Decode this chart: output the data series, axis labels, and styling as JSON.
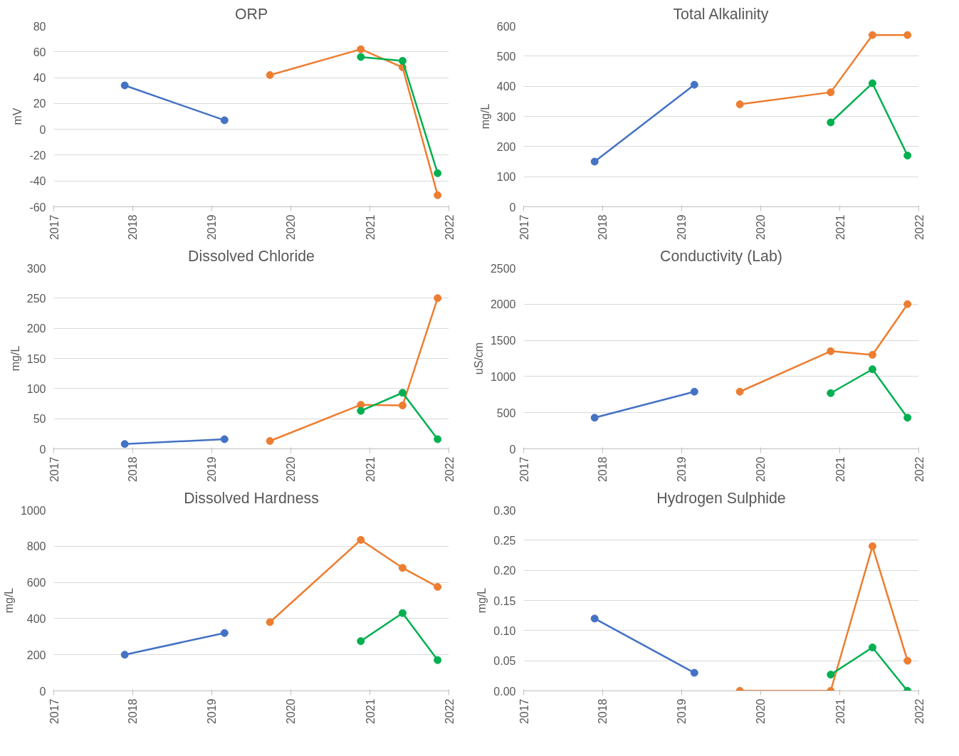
{
  "chart_data": [
    {
      "type": "line",
      "title": "ORP",
      "ylabel": "mV",
      "ylim": [
        -60,
        80
      ],
      "yticks": [
        -60,
        -40,
        -20,
        0,
        20,
        40,
        60,
        80
      ],
      "xlim": [
        "2017",
        "2022"
      ],
      "xticks": [
        "2017",
        "2018",
        "2019",
        "2020",
        "2021",
        "2022"
      ],
      "grid": "y",
      "marker": "circle",
      "series": [
        {
          "color": "#4472c4",
          "x": [
            "2017-11-25",
            "2019-03-01"
          ],
          "values": [
            34,
            7
          ]
        },
        {
          "color": "#ed7d31",
          "x": [
            "2019-09-27",
            "2020-11-20",
            "2021-06-01",
            "2021-11-10"
          ],
          "values": [
            42,
            62,
            48,
            -51
          ]
        },
        {
          "color": "#00b050",
          "x": [
            "2020-11-20",
            "2021-06-01",
            "2021-11-10"
          ],
          "values": [
            56,
            53,
            -34
          ]
        }
      ]
    },
    {
      "type": "line",
      "title": "Total Alkalinity",
      "ylabel": "mg/L",
      "ylim": [
        0,
        600
      ],
      "yticks": [
        0,
        100,
        200,
        300,
        400,
        500,
        600
      ],
      "xlim": [
        "2017",
        "2022"
      ],
      "xticks": [
        "2017",
        "2018",
        "2019",
        "2020",
        "2021",
        "2022"
      ],
      "grid": "y",
      "marker": "circle",
      "series": [
        {
          "color": "#4472c4",
          "x": [
            "2017-11-25",
            "2019-03-01"
          ],
          "values": [
            150,
            405
          ]
        },
        {
          "color": "#ed7d31",
          "x": [
            "2019-09-27",
            "2020-11-20",
            "2021-06-01",
            "2021-11-10"
          ],
          "values": [
            340,
            380,
            570,
            570
          ]
        },
        {
          "color": "#00b050",
          "x": [
            "2020-11-20",
            "2021-06-01",
            "2021-11-10"
          ],
          "values": [
            280,
            410,
            170
          ]
        }
      ]
    },
    {
      "type": "line",
      "title": "Dissolved Chloride",
      "ylabel": "mg/L",
      "ylim": [
        0,
        300
      ],
      "yticks": [
        0,
        50,
        100,
        150,
        200,
        250,
        300
      ],
      "xlim": [
        "2017",
        "2022"
      ],
      "xticks": [
        "2017",
        "2018",
        "2019",
        "2020",
        "2021",
        "2022"
      ],
      "grid": "y",
      "marker": "circle",
      "series": [
        {
          "color": "#4472c4",
          "x": [
            "2017-11-25",
            "2019-03-01"
          ],
          "values": [
            8,
            16
          ]
        },
        {
          "color": "#ed7d31",
          "x": [
            "2019-09-27",
            "2020-11-20",
            "2021-06-01",
            "2021-11-10"
          ],
          "values": [
            13,
            73,
            72,
            250
          ]
        },
        {
          "color": "#00b050",
          "x": [
            "2020-11-20",
            "2021-06-01",
            "2021-11-10"
          ],
          "values": [
            63,
            93,
            16
          ]
        }
      ]
    },
    {
      "type": "line",
      "title": "Conductivity (Lab)",
      "ylabel": "uS/cm",
      "ylim": [
        0,
        2500
      ],
      "yticks": [
        0,
        500,
        1000,
        1500,
        2000,
        2500
      ],
      "xlim": [
        "2017",
        "2022"
      ],
      "xticks": [
        "2017",
        "2018",
        "2019",
        "2020",
        "2021",
        "2022"
      ],
      "grid": "y",
      "marker": "circle",
      "series": [
        {
          "color": "#4472c4",
          "x": [
            "2017-11-25",
            "2019-03-01"
          ],
          "values": [
            430,
            790
          ]
        },
        {
          "color": "#ed7d31",
          "x": [
            "2019-09-27",
            "2020-11-20",
            "2021-06-01",
            "2021-11-10"
          ],
          "values": [
            790,
            1350,
            1300,
            2000
          ]
        },
        {
          "color": "#00b050",
          "x": [
            "2020-11-20",
            "2021-06-01",
            "2021-11-10"
          ],
          "values": [
            770,
            1100,
            430
          ]
        }
      ]
    },
    {
      "type": "line",
      "title": "Dissolved Hardness",
      "ylabel": "mg/L",
      "ylim": [
        0,
        1000
      ],
      "yticks": [
        0,
        200,
        400,
        600,
        800,
        1000
      ],
      "xlim": [
        "2017",
        "2022"
      ],
      "xticks": [
        "2017",
        "2018",
        "2019",
        "2020",
        "2021",
        "2022"
      ],
      "grid": "y",
      "marker": "circle",
      "series": [
        {
          "color": "#4472c4",
          "x": [
            "2017-11-25",
            "2019-03-01"
          ],
          "values": [
            200,
            320
          ]
        },
        {
          "color": "#ed7d31",
          "x": [
            "2019-09-27",
            "2020-11-20",
            "2021-06-01",
            "2021-11-10"
          ],
          "values": [
            380,
            835,
            680,
            575
          ]
        },
        {
          "color": "#00b050",
          "x": [
            "2020-11-20",
            "2021-06-01",
            "2021-11-10"
          ],
          "values": [
            275,
            430,
            170
          ]
        }
      ]
    },
    {
      "type": "line",
      "title": "Hydrogen Sulphide",
      "ylabel": "mg/L",
      "ylim": [
        0,
        0.3
      ],
      "yticks": [
        {
          "value": 0,
          "label": "0.00"
        },
        {
          "value": 0.05,
          "label": "0.05"
        },
        {
          "value": 0.1,
          "label": "0.10"
        },
        {
          "value": 0.15,
          "label": "0.15"
        },
        {
          "value": 0.2,
          "label": "0.20"
        },
        {
          "value": 0.25,
          "label": "0.25"
        },
        {
          "value": 0.3,
          "label": "0.30"
        }
      ],
      "xlim": [
        "2017",
        "2022"
      ],
      "xticks": [
        "2017",
        "2018",
        "2019",
        "2020",
        "2021",
        "2022"
      ],
      "grid": "y",
      "marker": "circle",
      "series": [
        {
          "color": "#4472c4",
          "x": [
            "2017-11-25",
            "2019-03-01"
          ],
          "values": [
            0.12,
            0.03
          ]
        },
        {
          "color": "#ed7d31",
          "x": [
            "2019-09-27",
            "2020-11-20",
            "2021-06-01",
            "2021-11-10"
          ],
          "values": [
            0,
            0,
            0.24,
            0.05
          ]
        },
        {
          "color": "#00b050",
          "x": [
            "2020-11-20",
            "2021-06-01",
            "2021-11-10"
          ],
          "values": [
            0.027,
            0.072,
            0
          ]
        }
      ]
    }
  ]
}
